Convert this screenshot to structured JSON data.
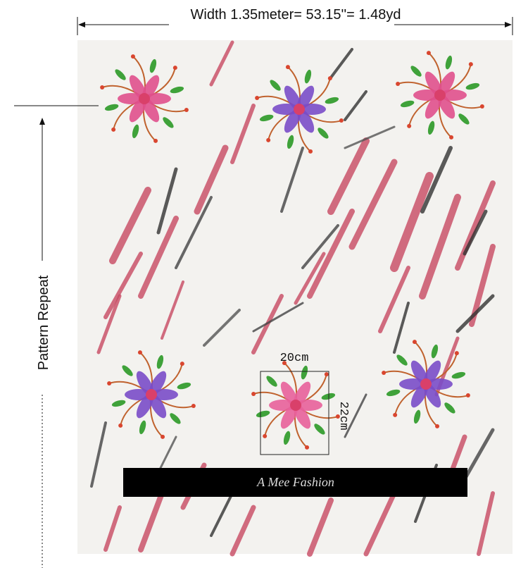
{
  "header": {
    "width_label": "Width 1.35meter= 53.15''= 1.48yd"
  },
  "side": {
    "repeat_label": "Pattern Repeat"
  },
  "motif": {
    "width_label": "20cm",
    "height_label": "22cm"
  },
  "banner": {
    "brand": "A Mee Fashion"
  }
}
